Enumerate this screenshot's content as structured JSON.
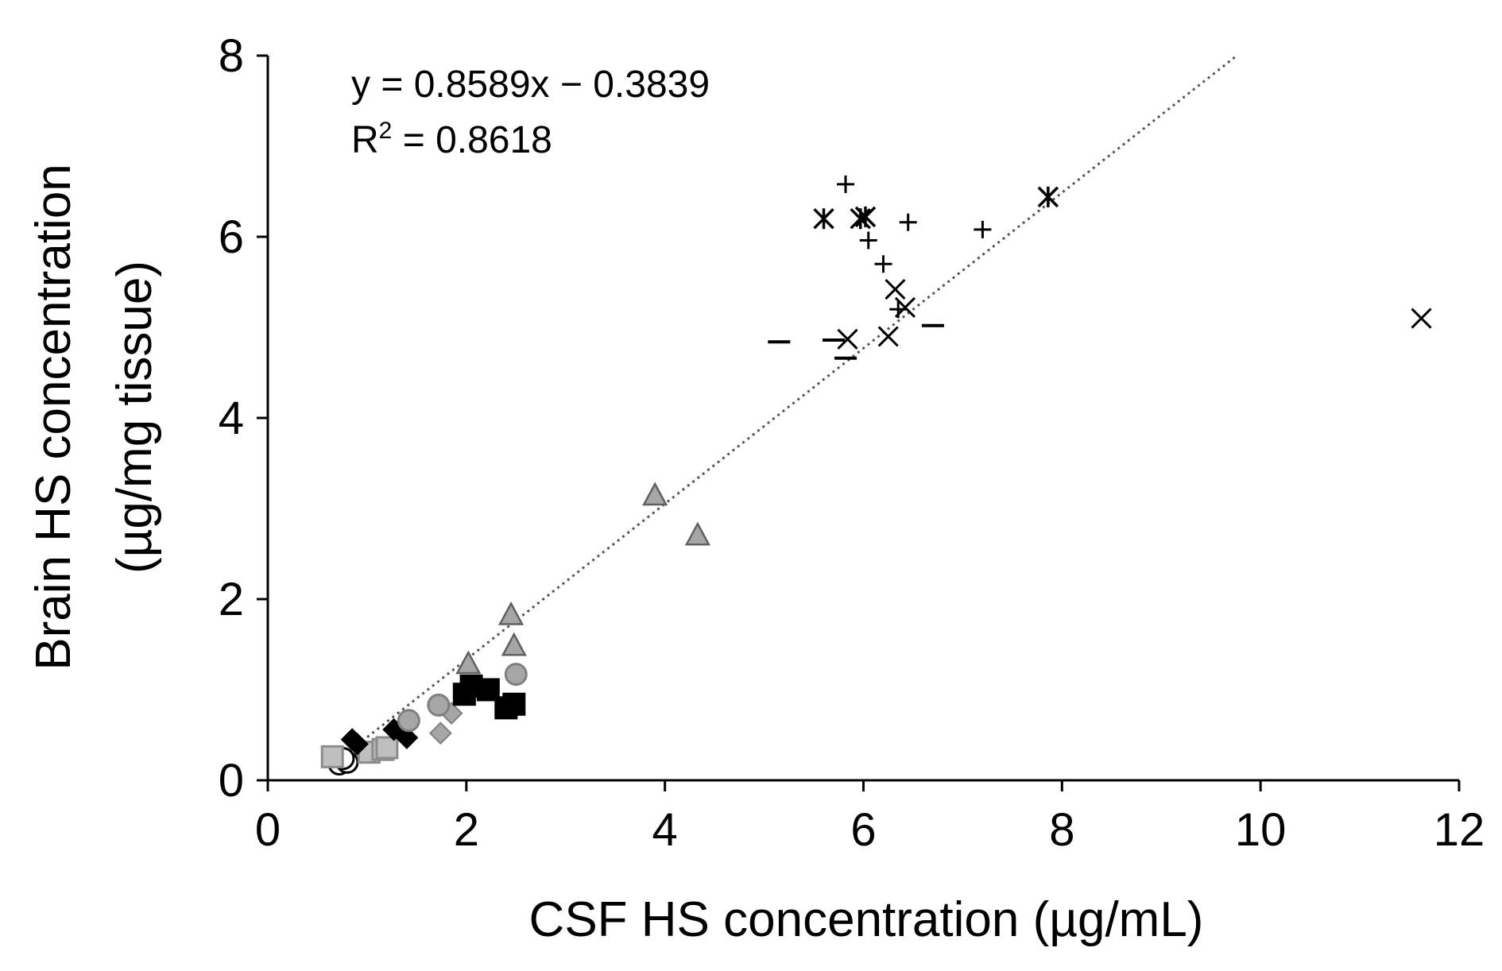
{
  "chart_data": {
    "type": "scatter",
    "title": "",
    "xlabel": "CSF HS concentration (µg/mL)",
    "ylabel_line1": "Brain HS concentration",
    "ylabel_line2": "(µg/mg tissue)",
    "xlim": [
      0,
      12
    ],
    "ylim": [
      0,
      8
    ],
    "xticks": [
      0,
      2,
      4,
      6,
      8,
      10,
      12
    ],
    "yticks": [
      0,
      2,
      4,
      6,
      8
    ],
    "xtick_labels": [
      "0",
      "2",
      "4",
      "6",
      "8",
      "10",
      "12"
    ],
    "ytick_labels": [
      "0",
      "2",
      "4",
      "6",
      "8"
    ],
    "equation": "y = 0.8589x  − 0.3839",
    "r2_prefix": "R",
    "r2_sup": "2",
    "r2_value": " = 0.8618",
    "trendline": {
      "slope": 0.8589,
      "intercept": -0.3839,
      "x_start": 0.8,
      "x_end": 9.77
    },
    "series": [
      {
        "name": "open-circle",
        "marker": "circle",
        "fill": "#ffffff",
        "stroke": "#000000",
        "points": [
          [
            0.72,
            0.18
          ],
          [
            0.8,
            0.2
          ],
          [
            0.76,
            0.24
          ]
        ]
      },
      {
        "name": "light-gray-square",
        "marker": "square",
        "fill": "#bfbfbf",
        "stroke": "#8c8c8c",
        "points": [
          [
            0.65,
            0.26
          ],
          [
            1.02,
            0.31
          ],
          [
            1.16,
            0.34
          ],
          [
            1.2,
            0.36
          ]
        ]
      },
      {
        "name": "black-diamond",
        "marker": "diamond",
        "fill": "#000000",
        "stroke": "#000000",
        "points": [
          [
            0.85,
            0.45
          ],
          [
            0.9,
            0.4
          ],
          [
            1.27,
            0.56
          ],
          [
            1.4,
            0.47
          ]
        ]
      },
      {
        "name": "gray-diamond",
        "marker": "diamond",
        "fill": "#a6a6a6",
        "stroke": "#7f7f7f",
        "points": [
          [
            1.74,
            0.52
          ],
          [
            1.85,
            0.74
          ]
        ]
      },
      {
        "name": "gray-circle",
        "marker": "circle",
        "fill": "#a6a6a6",
        "stroke": "#7f7f7f",
        "points": [
          [
            1.42,
            0.66
          ],
          [
            1.72,
            0.83
          ],
          [
            2.5,
            1.17
          ]
        ]
      },
      {
        "name": "black-square",
        "marker": "square",
        "fill": "#000000",
        "stroke": "#000000",
        "points": [
          [
            1.98,
            0.95
          ],
          [
            2.05,
            1.04
          ],
          [
            2.22,
            1.0
          ],
          [
            2.4,
            0.8
          ],
          [
            2.48,
            0.84
          ]
        ]
      },
      {
        "name": "gray-triangle",
        "marker": "triangle",
        "fill": "#a6a6a6",
        "stroke": "#606060",
        "points": [
          [
            2.02,
            1.28
          ],
          [
            2.45,
            1.82
          ],
          [
            2.48,
            1.48
          ],
          [
            3.9,
            3.14
          ],
          [
            4.33,
            2.7
          ]
        ]
      },
      {
        "name": "plus",
        "marker": "plus",
        "fill": "none",
        "stroke": "#000000",
        "points": [
          [
            5.82,
            6.58
          ],
          [
            6.05,
            5.96
          ],
          [
            6.2,
            5.7
          ],
          [
            6.45,
            6.16
          ],
          [
            7.2,
            6.08
          ],
          [
            6.35,
            5.2
          ]
        ]
      },
      {
        "name": "x-cross",
        "marker": "x",
        "fill": "none",
        "stroke": "#000000",
        "points": [
          [
            5.84,
            4.87
          ],
          [
            6.25,
            4.9
          ],
          [
            6.32,
            5.42
          ],
          [
            6.42,
            5.22
          ],
          [
            11.62,
            5.1
          ]
        ]
      },
      {
        "name": "asterisk",
        "marker": "asterisk",
        "fill": "none",
        "stroke": "#000000",
        "points": [
          [
            5.6,
            6.2
          ],
          [
            5.97,
            6.2
          ],
          [
            6.02,
            6.22
          ],
          [
            7.86,
            6.44
          ]
        ]
      },
      {
        "name": "dash",
        "marker": "dash",
        "fill": "none",
        "stroke": "#000000",
        "points": [
          [
            5.15,
            4.84
          ],
          [
            5.7,
            4.86
          ],
          [
            5.82,
            4.66
          ],
          [
            6.7,
            5.02
          ]
        ]
      }
    ]
  }
}
